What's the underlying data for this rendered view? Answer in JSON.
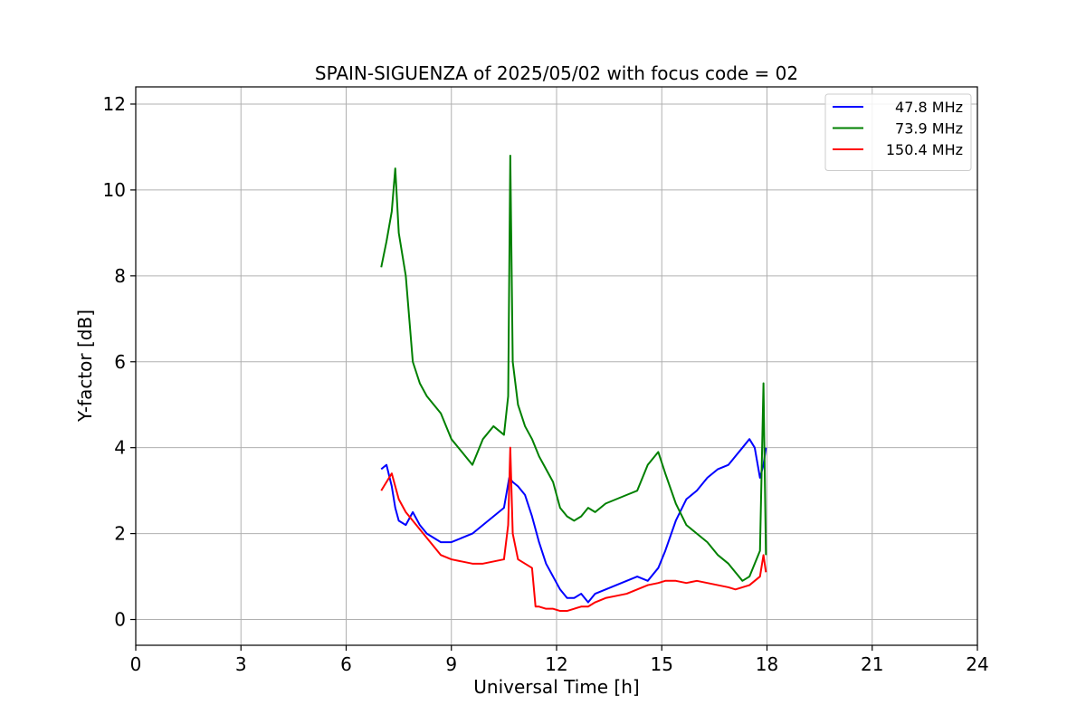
{
  "chart_data": {
    "type": "line",
    "title": "SPAIN-SIGUENZA of 2025/05/02 with focus code = 02",
    "xlabel": "Universal Time [h]",
    "ylabel": "Y-factor [dB]",
    "xlim": [
      0,
      24
    ],
    "ylim": [
      -0.6,
      12.4
    ],
    "xticks": [
      0,
      3,
      6,
      9,
      12,
      15,
      18,
      21,
      24
    ],
    "yticks": [
      0,
      2,
      4,
      6,
      8,
      10,
      12
    ],
    "xtick_labels": [
      "0",
      "3",
      "6",
      "9",
      "12",
      "15",
      "18",
      "21",
      "24"
    ],
    "ytick_labels": [
      "0",
      "2",
      "4",
      "6",
      "8",
      "10",
      "12"
    ],
    "grid": true,
    "legend_position": "top-right",
    "series": [
      {
        "name": "47.8 MHz",
        "color": "#0000ff",
        "x": [
          7.0,
          7.15,
          7.3,
          7.4,
          7.5,
          7.7,
          7.9,
          8.1,
          8.3,
          8.5,
          8.7,
          9.0,
          9.3,
          9.6,
          9.9,
          10.2,
          10.5,
          10.65,
          10.75,
          10.9,
          11.1,
          11.3,
          11.5,
          11.7,
          11.9,
          12.1,
          12.3,
          12.5,
          12.7,
          12.9,
          13.1,
          13.4,
          13.7,
          14.0,
          14.3,
          14.6,
          14.9,
          15.1,
          15.4,
          15.7,
          16.0,
          16.3,
          16.6,
          16.9,
          17.1,
          17.3,
          17.5,
          17.65,
          17.8,
          17.9,
          17.97
        ],
        "y": [
          3.5,
          3.6,
          3.1,
          2.6,
          2.3,
          2.2,
          2.5,
          2.2,
          2.0,
          1.9,
          1.8,
          1.8,
          1.9,
          2.0,
          2.2,
          2.4,
          2.6,
          3.3,
          3.2,
          3.1,
          2.9,
          2.4,
          1.8,
          1.3,
          1.0,
          0.7,
          0.5,
          0.5,
          0.6,
          0.4,
          0.6,
          0.7,
          0.8,
          0.9,
          1.0,
          0.9,
          1.2,
          1.6,
          2.3,
          2.8,
          3.0,
          3.3,
          3.5,
          3.6,
          3.8,
          4.0,
          4.2,
          4.0,
          3.3,
          3.6,
          4.0
        ]
      },
      {
        "name": "73.9 MHz",
        "color": "#008000",
        "x": [
          7.0,
          7.15,
          7.3,
          7.4,
          7.5,
          7.7,
          7.9,
          8.1,
          8.3,
          8.5,
          8.7,
          9.0,
          9.3,
          9.6,
          9.9,
          10.2,
          10.5,
          10.62,
          10.68,
          10.75,
          10.9,
          11.1,
          11.3,
          11.5,
          11.7,
          11.9,
          12.1,
          12.3,
          12.5,
          12.7,
          12.9,
          13.1,
          13.4,
          13.7,
          14.0,
          14.3,
          14.6,
          14.9,
          15.1,
          15.4,
          15.7,
          16.0,
          16.3,
          16.6,
          16.9,
          17.1,
          17.3,
          17.5,
          17.65,
          17.8,
          17.9,
          17.97
        ],
        "y": [
          8.2,
          8.8,
          9.5,
          10.5,
          9.0,
          8.0,
          6.0,
          5.5,
          5.2,
          5.0,
          4.8,
          4.2,
          3.9,
          3.6,
          4.2,
          4.5,
          4.3,
          5.2,
          10.8,
          6.0,
          5.0,
          4.5,
          4.2,
          3.8,
          3.5,
          3.2,
          2.6,
          2.4,
          2.3,
          2.4,
          2.6,
          2.5,
          2.7,
          2.8,
          2.9,
          3.0,
          3.6,
          3.9,
          3.4,
          2.7,
          2.2,
          2.0,
          1.8,
          1.5,
          1.3,
          1.1,
          0.9,
          1.0,
          1.3,
          1.6,
          5.5,
          1.5
        ]
      },
      {
        "name": "150.4 MHz",
        "color": "#ff0000",
        "x": [
          7.0,
          7.15,
          7.3,
          7.4,
          7.5,
          7.7,
          7.9,
          8.1,
          8.3,
          8.5,
          8.7,
          9.0,
          9.3,
          9.6,
          9.9,
          10.2,
          10.5,
          10.62,
          10.68,
          10.75,
          10.9,
          11.1,
          11.3,
          11.4,
          11.5,
          11.7,
          11.9,
          12.1,
          12.3,
          12.5,
          12.7,
          12.9,
          13.1,
          13.4,
          13.7,
          14.0,
          14.3,
          14.6,
          14.9,
          15.1,
          15.4,
          15.7,
          16.0,
          16.3,
          16.6,
          16.9,
          17.1,
          17.3,
          17.5,
          17.65,
          17.8,
          17.9,
          17.97
        ],
        "y": [
          3.0,
          3.2,
          3.4,
          3.1,
          2.8,
          2.5,
          2.3,
          2.1,
          1.9,
          1.7,
          1.5,
          1.4,
          1.35,
          1.3,
          1.3,
          1.35,
          1.4,
          2.2,
          4.0,
          2.0,
          1.4,
          1.3,
          1.2,
          0.3,
          0.3,
          0.25,
          0.25,
          0.2,
          0.2,
          0.25,
          0.3,
          0.3,
          0.4,
          0.5,
          0.55,
          0.6,
          0.7,
          0.8,
          0.85,
          0.9,
          0.9,
          0.85,
          0.9,
          0.85,
          0.8,
          0.75,
          0.7,
          0.75,
          0.8,
          0.9,
          1.0,
          1.5,
          1.1
        ]
      }
    ]
  }
}
